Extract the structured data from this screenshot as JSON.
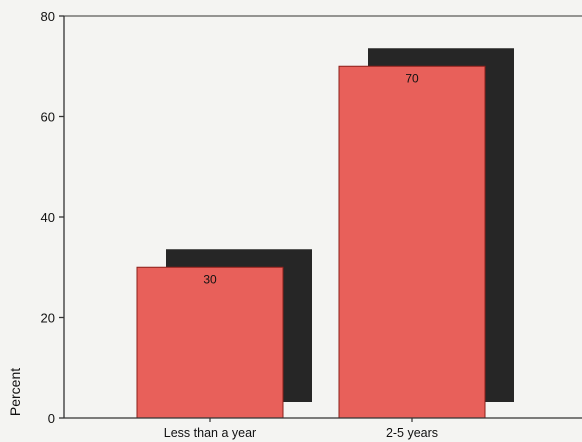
{
  "chart_data": {
    "type": "bar",
    "categories": [
      "Less than a year",
      "2-5 years"
    ],
    "values": [
      30,
      70
    ],
    "data_labels": [
      "30",
      "70"
    ],
    "title": "",
    "xlabel": "",
    "ylabel": "Percent",
    "ylim": [
      0,
      80
    ],
    "yticks": [
      0,
      20,
      40,
      60,
      80
    ],
    "grid": false,
    "style": "3d-shadow",
    "colors": {
      "bar": "#e8605a",
      "bar_edge": "#8a1f1a",
      "shadow": "#262626",
      "axis": "#333333",
      "background": "#f4f4f2"
    }
  }
}
